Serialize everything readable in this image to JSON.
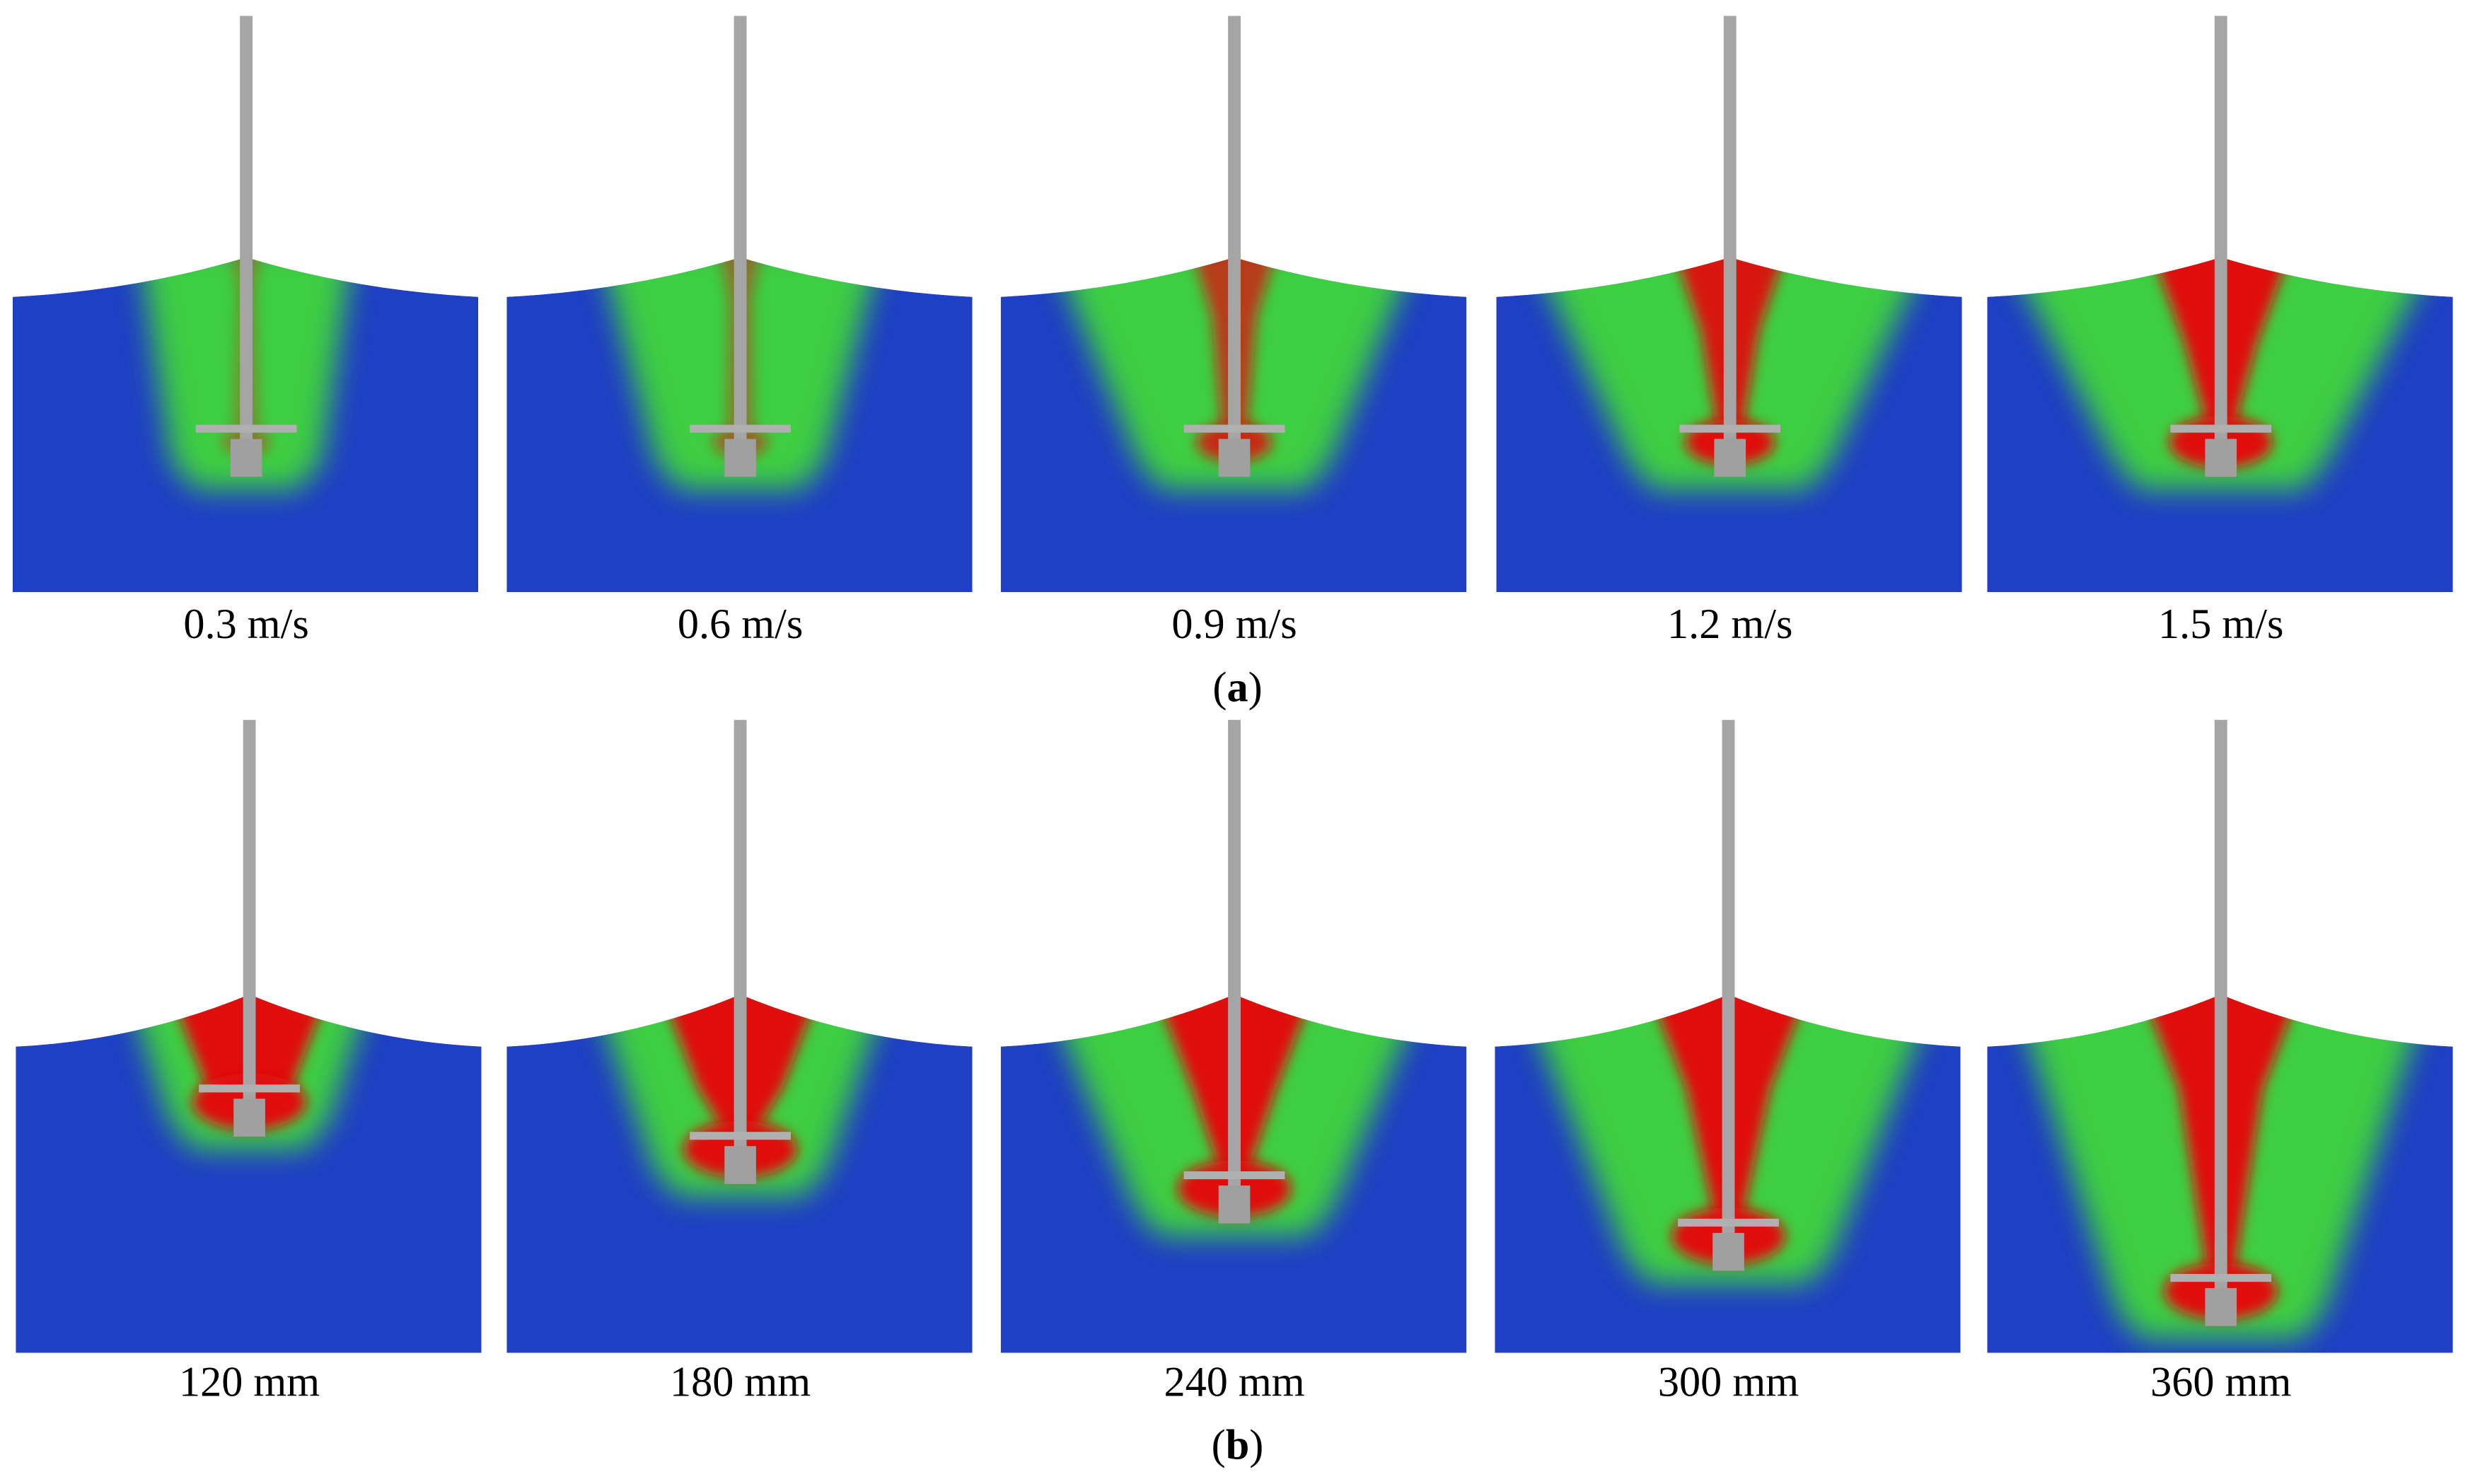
{
  "panels": [
    {
      "label": [
        "(",
        "a",
        ")"
      ],
      "captions": [
        "0.3 m/s",
        "0.6 m/s",
        "0.9 m/s",
        "1.2 m/s",
        "1.5 m/s"
      ]
    },
    {
      "label": [
        "(",
        "b",
        ")"
      ],
      "captions": [
        "120 mm",
        "180 mm",
        "240 mm",
        "300 mm",
        "360 mm"
      ]
    }
  ]
}
